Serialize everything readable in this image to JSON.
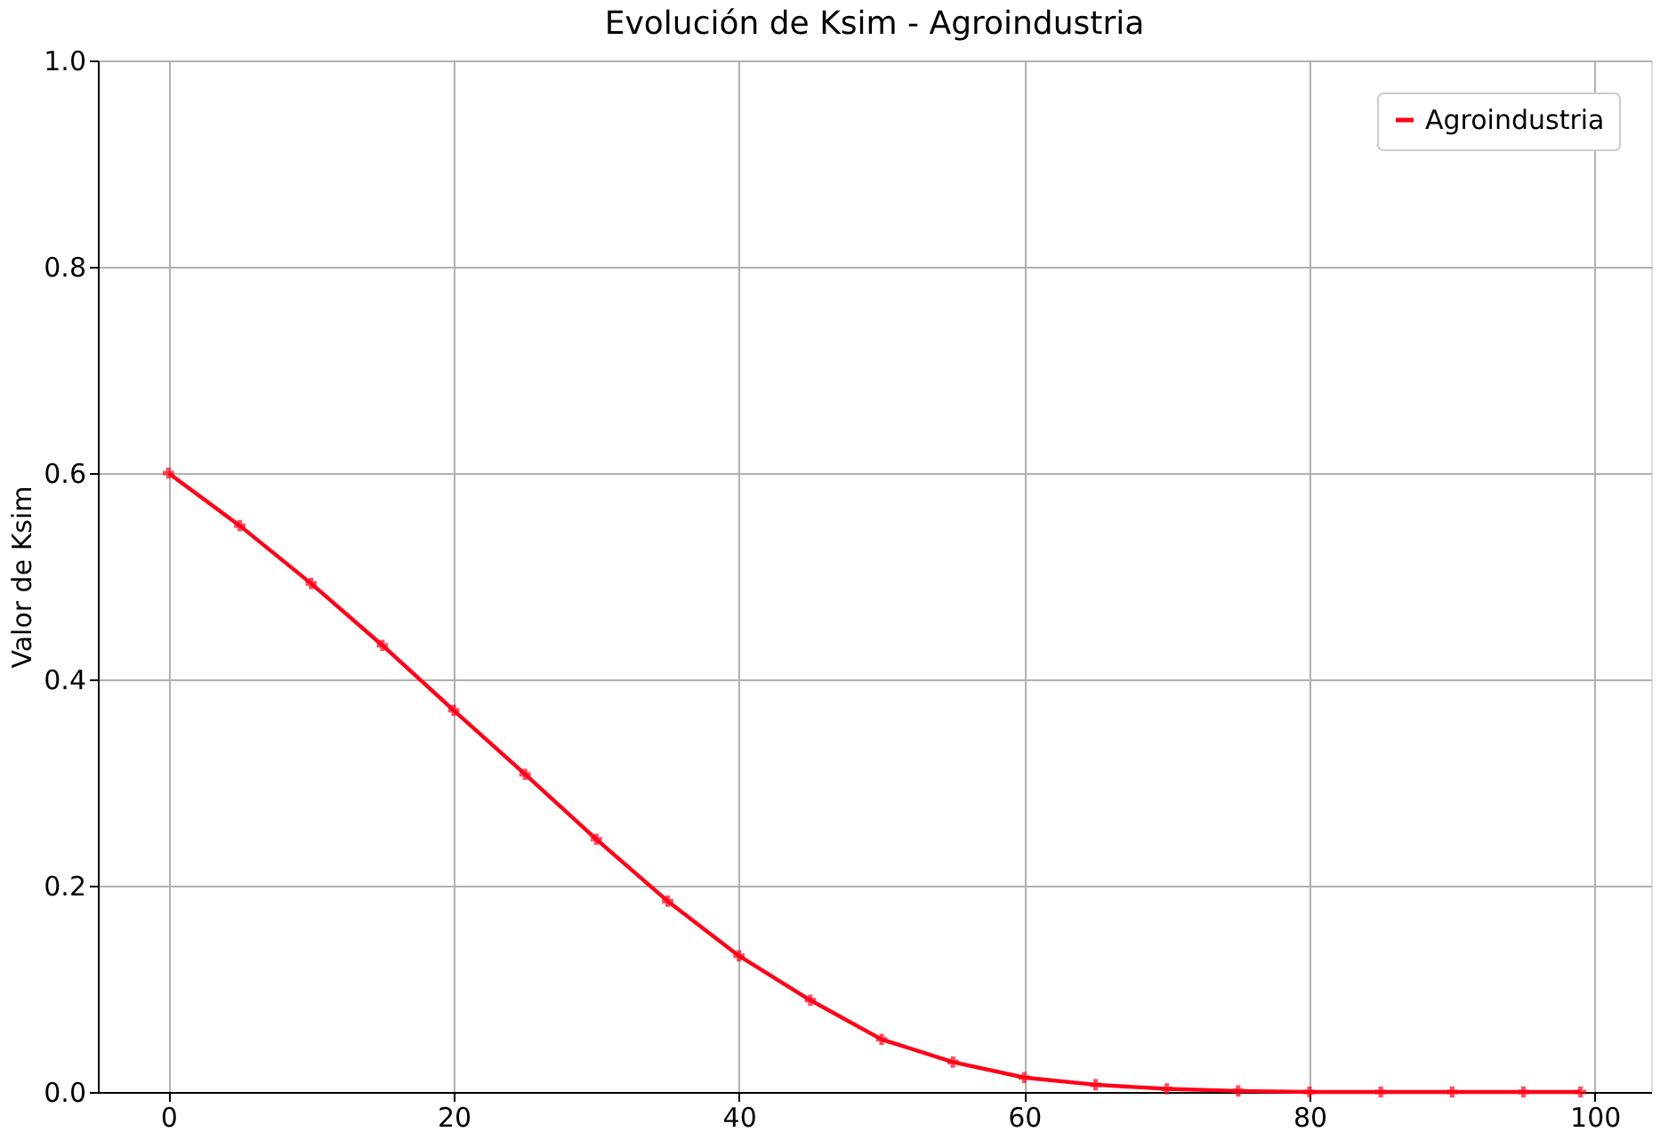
{
  "chart_data": {
    "type": "line",
    "title": "Evolución de Ksim - Agroindustria",
    "ylabel": "Valor de Ksim",
    "x": [
      0,
      5,
      10,
      15,
      20,
      25,
      30,
      35,
      40,
      45,
      50,
      55,
      60,
      65,
      70,
      75,
      80,
      85,
      90,
      95,
      99
    ],
    "series": [
      {
        "name": "Agroindustria",
        "color": "#ff0019",
        "values": [
          0.6,
          0.549,
          0.493,
          0.433,
          0.37,
          0.308,
          0.245,
          0.185,
          0.132,
          0.089,
          0.051,
          0.029,
          0.014,
          0.007,
          0.003,
          0.001,
          0,
          0,
          0,
          0,
          0
        ]
      }
    ],
    "xlim": [
      -4.95,
      103.95
    ],
    "xticks": [
      0,
      20,
      40,
      60,
      80,
      100
    ],
    "ylim": [
      0,
      1.0
    ],
    "yticks": [
      {
        "value": 0,
        "label": "0.0"
      },
      {
        "value": 0.2,
        "label": "0.2"
      },
      {
        "value": 0.4,
        "label": "0.4"
      },
      {
        "value": 0.6,
        "label": "0.6"
      },
      {
        "value": 0.8,
        "label": "0.8"
      },
      {
        "value": 1.0,
        "label": "1.0"
      }
    ],
    "grid": true,
    "legend": "top right",
    "marker": "cross",
    "line_style": "solid"
  }
}
